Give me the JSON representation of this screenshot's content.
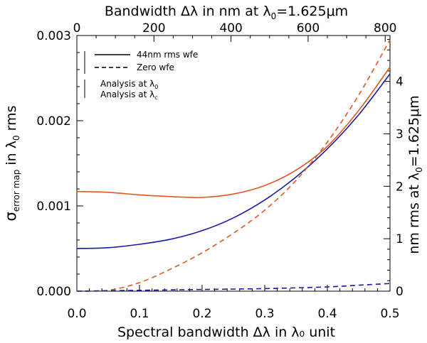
{
  "chart_data": {
    "type": "line",
    "title": "",
    "xlabel": "Spectral bandwidth Δλ in λ₀ unit",
    "ylabel_parts": {
      "sym": "σ",
      "sub": "error map",
      "mid": " in λ",
      "sub2": "0",
      "end": " rms"
    },
    "xlim": [
      0.0,
      0.5
    ],
    "ylim": [
      0.0,
      0.003
    ],
    "x_ticks": [
      "0.0",
      "0.1",
      "0.2",
      "0.3",
      "0.4",
      "0.5"
    ],
    "y_ticks": [
      "0.000",
      "0.001",
      "0.002",
      "0.003"
    ],
    "top_axis": {
      "label_parts": {
        "main": "Bandwidth Δλ in nm at λ",
        "sub": "0",
        "end": "=1.625μm"
      },
      "range": [
        0,
        812.5
      ],
      "ticks": [
        "0",
        "200",
        "400",
        "600",
        "800"
      ]
    },
    "right_axis": {
      "label_parts": {
        "main": "nm rms at λ",
        "sub": "0",
        "end": "=1.625μm"
      },
      "range": [
        0,
        4.875
      ],
      "ticks": [
        "0",
        "1",
        "2",
        "3",
        "4"
      ]
    },
    "legend": {
      "solid": "44nm rms wfe",
      "dashed": "Zero wfe",
      "analysis0_parts": {
        "main": "Analysis at λ",
        "sub": "0"
      },
      "analysisc_parts": {
        "main": "Analysis at λ",
        "sub": "c"
      }
    },
    "colors": {
      "orange": "#e2571f",
      "blue": "#1a1aa6",
      "black": "#000000"
    },
    "series": [
      {
        "name": "Analysis at λ0, 44nm rms wfe",
        "color": "orange",
        "style": "solid",
        "x": [
          0.0,
          0.05,
          0.1,
          0.15,
          0.2,
          0.25,
          0.3,
          0.35,
          0.4,
          0.45,
          0.5
        ],
        "y": [
          0.00117,
          0.00116,
          0.00113,
          0.00111,
          0.0011,
          0.00114,
          0.00124,
          0.00142,
          0.0017,
          0.00212,
          0.00263
        ]
      },
      {
        "name": "Analysis at λc, 44nm rms wfe",
        "color": "blue",
        "style": "solid",
        "x": [
          0.0,
          0.05,
          0.1,
          0.15,
          0.2,
          0.25,
          0.3,
          0.35,
          0.4,
          0.45,
          0.5
        ],
        "y": [
          0.0005,
          0.00051,
          0.00055,
          0.00061,
          0.00071,
          0.00086,
          0.00107,
          0.00134,
          0.00167,
          0.00207,
          0.00255
        ]
      },
      {
        "name": "Analysis at λ0, Zero wfe",
        "color": "orange",
        "style": "dashed",
        "x": [
          0.0,
          0.05,
          0.1,
          0.15,
          0.2,
          0.25,
          0.3,
          0.35,
          0.4,
          0.45,
          0.5
        ],
        "y": [
          0.0,
          1e-05,
          0.0001,
          0.00026,
          0.00045,
          0.00068,
          0.00095,
          0.0013,
          0.00175,
          0.0023,
          0.00295
        ]
      },
      {
        "name": "Analysis at λc, Zero wfe",
        "color": "blue",
        "style": "dashed",
        "x": [
          0.0,
          0.1,
          0.2,
          0.3,
          0.4,
          0.45,
          0.5
        ],
        "y": [
          0.0,
          1e-05,
          2e-05,
          3e-05,
          5e-05,
          7e-05,
          9e-05
        ]
      }
    ]
  }
}
